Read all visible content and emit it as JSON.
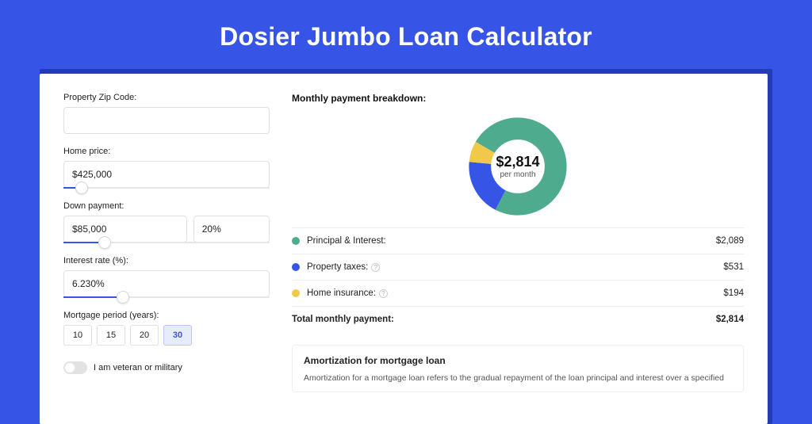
{
  "title": "Dosier Jumbo Loan Calculator",
  "colors": {
    "page_bg": "#3654e6",
    "card_shadow": "#243bb3",
    "accent": "#3654e6",
    "principal": "#4fab8e",
    "taxes": "#3654e6",
    "insurance": "#f1c94a"
  },
  "form": {
    "zip": {
      "label": "Property Zip Code:",
      "value": ""
    },
    "home_price": {
      "label": "Home price:",
      "value": "$425,000",
      "slider_pct": 9
    },
    "down_payment": {
      "label": "Down payment:",
      "amount": "$85,000",
      "pct": "20%",
      "slider_pct": 20
    },
    "interest_rate": {
      "label": "Interest rate (%):",
      "value": "6.230%",
      "slider_pct": 29
    },
    "period": {
      "label": "Mortgage period (years):",
      "options": [
        "10",
        "15",
        "20",
        "30"
      ],
      "selected_index": 3
    },
    "veteran": {
      "label": "I am veteran or military",
      "value": false
    }
  },
  "breakdown": {
    "title": "Monthly payment breakdown:",
    "center_amount": "$2,814",
    "center_sub": "per month",
    "rows": [
      {
        "label": "Principal & Interest:",
        "value": "$2,089",
        "color": "#4fab8e",
        "info": false,
        "numeric": 2089
      },
      {
        "label": "Property taxes:",
        "value": "$531",
        "color": "#3654e6",
        "info": true,
        "numeric": 531
      },
      {
        "label": "Home insurance:",
        "value": "$194",
        "color": "#f1c94a",
        "info": true,
        "numeric": 194
      }
    ],
    "total": {
      "label": "Total monthly payment:",
      "value": "$2,814"
    },
    "donut": {
      "type": "donut",
      "thickness_pct": 22,
      "segments": [
        {
          "color": "#4fab8e",
          "fraction": 0.742
        },
        {
          "color": "#3654e6",
          "fraction": 0.189
        },
        {
          "color": "#f1c94a",
          "fraction": 0.069
        }
      ],
      "start_angle_deg": -60
    }
  },
  "amortization": {
    "title": "Amortization for mortgage loan",
    "text": "Amortization for a mortgage loan refers to the gradual repayment of the loan principal and interest over a specified"
  }
}
